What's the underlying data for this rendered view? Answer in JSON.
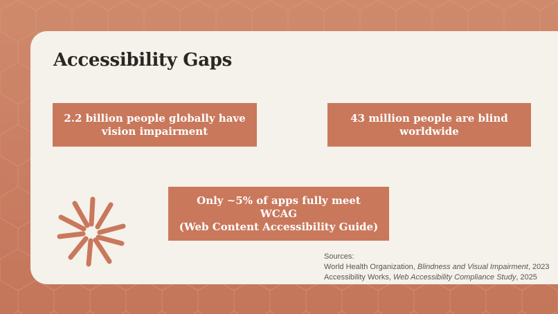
{
  "slide": {
    "title": "Accessibility Gaps",
    "stats": [
      {
        "line1": "2.2 billion people globally have",
        "line2": "vision impairment"
      },
      {
        "line1": "43 million people are blind",
        "line2": "worldwide"
      },
      {
        "line1": "Only ~5% of apps fully meet",
        "line2": "WCAG",
        "line3": "(Web Content Accessibility Guide)"
      }
    ],
    "sources": {
      "heading": "Sources:",
      "items": [
        {
          "org": "World Health Organization, ",
          "work": "Blindness and Visual Impairment",
          "year": ", 2023"
        },
        {
          "org": "Accessibility Works, ",
          "work": "Web Accessibility Compliance Study",
          "year": ", 2025"
        }
      ]
    },
    "colors": {
      "accent": "#c9785c",
      "background": "#cf8a6c",
      "card": "#f5f1eb",
      "title": "#2b2622"
    },
    "decoration": "starburst-icon"
  }
}
